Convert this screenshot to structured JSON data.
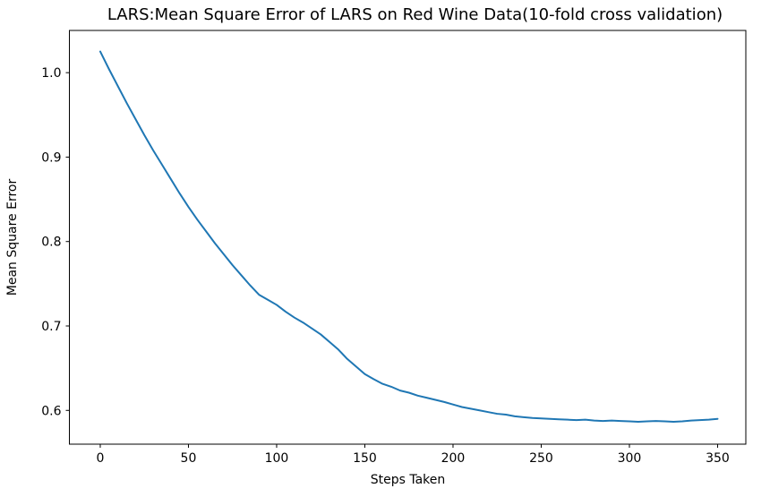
{
  "chart_data": {
    "type": "line",
    "title": "LARS:Mean Square Error of LARS on Red Wine Data(10-fold cross validation)",
    "xlabel": "Steps Taken",
    "ylabel": "Mean Square Error",
    "xlim": [
      -17.5,
      366
    ],
    "ylim": [
      0.56,
      1.05
    ],
    "xticks": [
      0,
      50,
      100,
      150,
      200,
      250,
      300,
      350
    ],
    "yticks": [
      0.6,
      0.7,
      0.8,
      0.9,
      1.0
    ],
    "grid": false,
    "legend": "none",
    "line_color": "#1f77b4",
    "line_width": 2,
    "series": [
      {
        "name": "mse",
        "x_start": 0,
        "x_step": 5,
        "x": [
          0,
          5,
          10,
          15,
          20,
          25,
          30,
          35,
          40,
          45,
          50,
          55,
          60,
          65,
          70,
          75,
          80,
          85,
          90,
          95,
          100,
          105,
          110,
          115,
          120,
          125,
          130,
          135,
          140,
          145,
          150,
          155,
          160,
          165,
          170,
          175,
          180,
          185,
          190,
          195,
          200,
          205,
          210,
          215,
          220,
          225,
          230,
          235,
          240,
          245,
          250,
          255,
          260,
          265,
          270,
          275,
          280,
          285,
          290,
          295,
          300,
          305,
          310,
          315,
          320,
          325,
          330,
          335,
          340,
          345,
          350
        ],
        "values": [
          1.025,
          1.004,
          0.984,
          0.964,
          0.945,
          0.926,
          0.908,
          0.891,
          0.874,
          0.857,
          0.841,
          0.826,
          0.812,
          0.798,
          0.785,
          0.772,
          0.76,
          0.748,
          0.737,
          0.731,
          0.725,
          0.717,
          0.71,
          0.704,
          0.697,
          0.69,
          0.681,
          0.672,
          0.661,
          0.652,
          0.643,
          0.637,
          0.6315,
          0.628,
          0.6235,
          0.621,
          0.6175,
          0.615,
          0.6125,
          0.61,
          0.607,
          0.604,
          0.602,
          0.6,
          0.598,
          0.596,
          0.595,
          0.593,
          0.592,
          0.591,
          0.5905,
          0.59,
          0.5895,
          0.589,
          0.5885,
          0.589,
          0.588,
          0.5875,
          0.588,
          0.5875,
          0.587,
          0.5865,
          0.587,
          0.5875,
          0.587,
          0.5865,
          0.587,
          0.588,
          0.5885,
          0.589,
          0.59
        ]
      }
    ]
  }
}
